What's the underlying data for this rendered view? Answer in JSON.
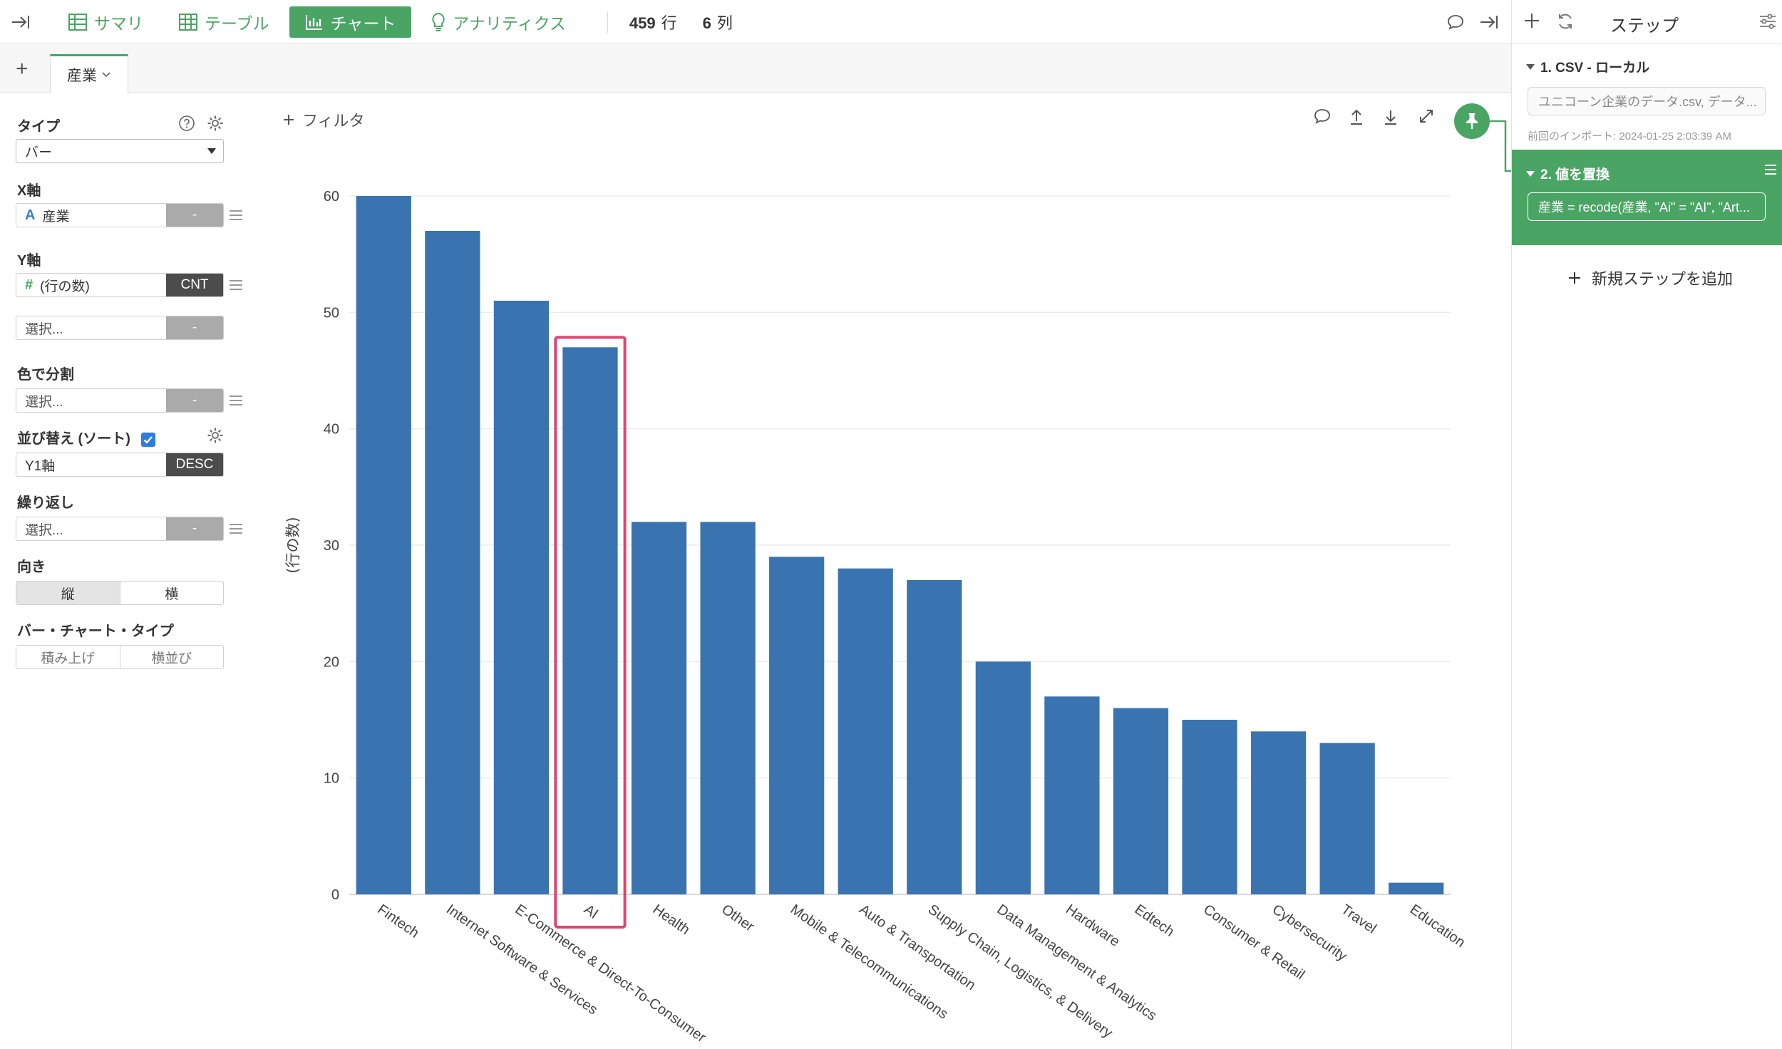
{
  "toolbar": {
    "tabs": [
      {
        "label": "サマリ"
      },
      {
        "label": "テーブル"
      },
      {
        "label": "チャート"
      },
      {
        "label": "アナリティクス"
      }
    ],
    "rows_value": "459",
    "rows_unit": "行",
    "cols_value": "6",
    "cols_unit": "列"
  },
  "subtabs": {
    "add": "+",
    "active_label": "産業"
  },
  "config": {
    "type_label": "タイプ",
    "type_value": "バー",
    "xaxis_label": "X軸",
    "xaxis_value": "産業",
    "xaxis_agg": "-",
    "yaxis_label": "Y軸",
    "yaxis_value": "(行の数)",
    "yaxis_agg": "CNT",
    "yaxis2_value": "選択...",
    "yaxis2_agg": "-",
    "color_label": "色で分割",
    "color_value": "選択...",
    "color_agg": "-",
    "sort_label": "並び替え (ソート)",
    "sort_value": "Y1軸",
    "sort_order": "DESC",
    "repeat_label": "繰り返し",
    "repeat_value": "選択...",
    "repeat_agg": "-",
    "orientation_label": "向き",
    "orientation_options": [
      "縦",
      "横"
    ],
    "bartype_label": "バー・チャート・タイプ",
    "bartype_options": [
      "積み上げ",
      "横並び"
    ]
  },
  "chart_area": {
    "filter_label": "フィルタ"
  },
  "chart_data": {
    "type": "bar",
    "categories": [
      "Fintech",
      "Internet Software & Services",
      "E-Commerce & Direct-To-Consumer",
      "AI",
      "Health",
      "Other",
      "Mobile & Telecommunications",
      "Auto & Transportation",
      "Supply Chain, Logistics, & Delivery",
      "Data Management & Analytics",
      "Hardware",
      "Edtech",
      "Consumer & Retail",
      "Cybersecurity",
      "Travel",
      "Education"
    ],
    "values": [
      60,
      57,
      51,
      47,
      32,
      32,
      29,
      28,
      27,
      20,
      17,
      16,
      15,
      14,
      13,
      1
    ],
    "ylabel": "(行の数)",
    "ylim": [
      0,
      60
    ],
    "yticks": [
      0,
      10,
      20,
      30,
      40,
      50,
      60
    ],
    "grid": true,
    "highlight_category": "AI",
    "bar_color": "#3a74b0",
    "highlight_color": "#e0446f"
  },
  "steps": {
    "title": "ステップ",
    "step1_title": "1. CSV - ローカル",
    "step1_detail": "ユニコーン企業のデータ.csv, データ...",
    "step1_meta": "前回のインポート: 2024-01-25 2:03:39 AM",
    "step2_title": "2. 値を置換",
    "step2_detail": "産業 = recode(産業, \"Ai\" = \"AI\", \"Art...",
    "add_step": "新規ステップを追加"
  },
  "colors": {
    "accent": "#4aa564",
    "bar": "#3a74b0",
    "highlight": "#e0446f"
  }
}
